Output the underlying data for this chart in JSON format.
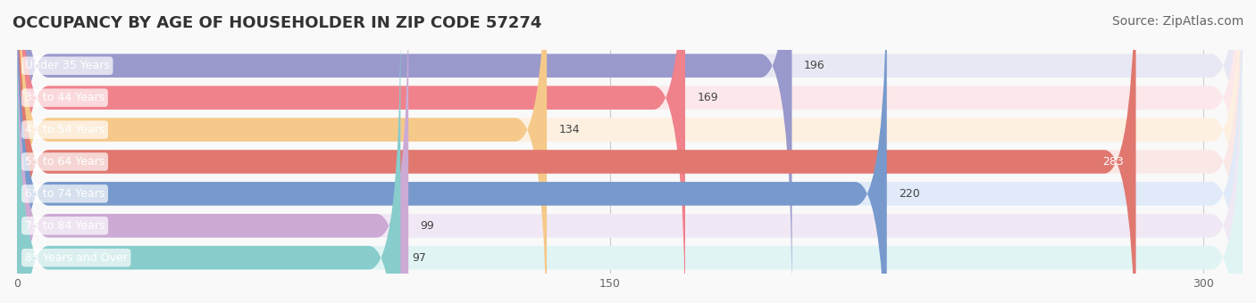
{
  "title": "OCCUPANCY BY AGE OF HOUSEHOLDER IN ZIP CODE 57274",
  "source": "Source: ZipAtlas.com",
  "categories": [
    "Under 35 Years",
    "35 to 44 Years",
    "45 to 54 Years",
    "55 to 64 Years",
    "65 to 74 Years",
    "75 to 84 Years",
    "85 Years and Over"
  ],
  "values": [
    196,
    169,
    134,
    283,
    220,
    99,
    97
  ],
  "bar_colors": [
    "#9999cc",
    "#f0828c",
    "#f5c98a",
    "#e07870",
    "#7799cc",
    "#ccaad4",
    "#88cccc"
  ],
  "bar_bg_colors": [
    "#e8e8f4",
    "#fce8ea",
    "#fdf0e0",
    "#fae8e6",
    "#e0eaf8",
    "#f0e8f4",
    "#e0f4f4"
  ],
  "xlim": [
    0,
    310
  ],
  "xticks": [
    0,
    150,
    300
  ],
  "title_fontsize": 13,
  "source_fontsize": 10,
  "label_fontsize": 9,
  "value_fontsize": 9,
  "background_color": "#f9f9f9"
}
